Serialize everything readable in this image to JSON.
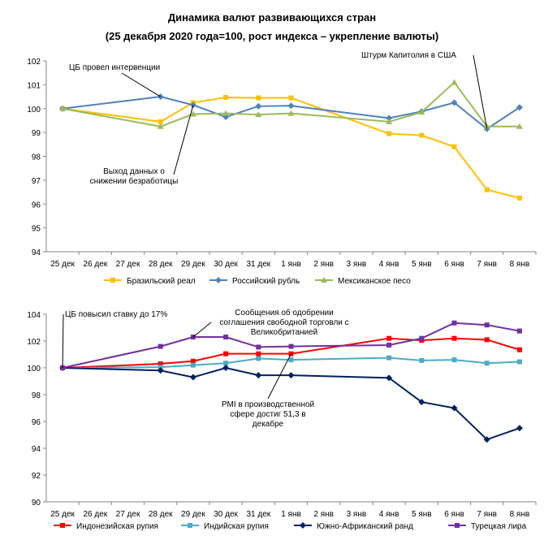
{
  "title": {
    "line1": "Динамика валют развивающихся стран",
    "line2": "(25 декабря 2020 года=100, рост индекса – укрепление валюты)"
  },
  "chart_data": [
    {
      "type": "line",
      "title": "Динамика валют развивающихся стран (25 декабря 2020 года=100, рост индекса – укрепление валюты)",
      "categories": [
        "25 дек",
        "26 дек",
        "27 дек",
        "28 дек",
        "29 дек",
        "30 дек",
        "31 дек",
        "1 янв",
        "2 янв",
        "3 янв",
        "4 янв",
        "5 янв",
        "6 янв",
        "7 янв",
        "8 янв"
      ],
      "ylim": [
        94,
        102
      ],
      "yticks": [
        94,
        95,
        96,
        97,
        98,
        99,
        100,
        101,
        102
      ],
      "legend": "bottom",
      "series": [
        {
          "name": "Бразильский реал",
          "color": "#FFC000",
          "marker": "square",
          "values": [
            100,
            null,
            null,
            99.45,
            100.25,
            100.47,
            100.45,
            100.45,
            null,
            null,
            98.95,
            98.88,
            98.4,
            96.6,
            96.25
          ]
        },
        {
          "name": "Российский рубль",
          "color": "#4F81BD",
          "marker": "diamond",
          "values": [
            100,
            null,
            null,
            100.5,
            100.15,
            99.65,
            100.1,
            100.12,
            null,
            null,
            99.6,
            99.88,
            100.25,
            99.15,
            100.05
          ]
        },
        {
          "name": "Мексиканское песо",
          "color": "#9BBB59",
          "marker": "triangle",
          "values": [
            100,
            null,
            null,
            99.25,
            99.77,
            99.8,
            99.75,
            99.8,
            null,
            null,
            99.45,
            99.85,
            101.1,
            99.25,
            99.25
          ]
        }
      ],
      "annotations": [
        {
          "lines": [
            "ЦБ провел интервенции"
          ],
          "target": {
            "series": 1,
            "category": "28 дек"
          }
        },
        {
          "lines": [
            "Выход данных о",
            "снижении безработицы"
          ],
          "target": {
            "series": 1,
            "category": "29 дек"
          }
        },
        {
          "lines": [
            "Штурм Капитолия в США"
          ],
          "target": {
            "series": 1,
            "category": "7 янв"
          }
        }
      ]
    },
    {
      "type": "line",
      "categories": [
        "25 дек",
        "26 дек",
        "27 дек",
        "28 дек",
        "29 дек",
        "30 дек",
        "31 дек",
        "1 янв",
        "2 янв",
        "3 янв",
        "4 янв",
        "5 янв",
        "6 янв",
        "7 янв",
        "8 янв"
      ],
      "ylim": [
        90,
        104
      ],
      "yticks": [
        90,
        92,
        94,
        96,
        98,
        100,
        102,
        104
      ],
      "legend": "bottom",
      "series": [
        {
          "name": "Индонезийская рупия",
          "color": "#FF0000",
          "marker": "square",
          "values": [
            100,
            null,
            null,
            100.3,
            100.5,
            101.05,
            101.05,
            101.05,
            null,
            null,
            102.2,
            102.05,
            102.2,
            102.1,
            101.35
          ]
        },
        {
          "name": "Индийская рупия",
          "color": "#4BACC6",
          "marker": "square",
          "values": [
            100,
            null,
            null,
            100.05,
            100.2,
            100.35,
            100.7,
            100.6,
            null,
            null,
            100.75,
            100.55,
            100.6,
            100.35,
            100.45
          ]
        },
        {
          "name": "Южно-Африканский ранд",
          "color": "#002060",
          "marker": "diamond",
          "values": [
            100,
            null,
            null,
            99.8,
            99.3,
            100,
            99.45,
            99.45,
            null,
            null,
            99.25,
            97.45,
            97.0,
            94.65,
            95.5
          ]
        },
        {
          "name": "Турецкая лира",
          "color": "#7030A0",
          "marker": "square",
          "values": [
            100,
            null,
            null,
            101.6,
            102.3,
            102.3,
            101.55,
            101.6,
            null,
            null,
            101.7,
            102.2,
            103.35,
            103.2,
            102.75
          ]
        }
      ],
      "annotations": [
        {
          "lines": [
            "ЦБ повысил ставку до 17%"
          ],
          "target": {
            "series": 3,
            "category": "25 дек"
          }
        },
        {
          "lines": [
            "Сообщения об одобрении",
            "соглашения свободной торговли с",
            "Великобританией"
          ],
          "target": {
            "series": 3,
            "category": "29 дек"
          }
        },
        {
          "lines": [
            "PMI в производственной",
            "сфере достиг 51,3 в",
            "декабре"
          ],
          "target": {
            "series": 0,
            "category": "1 янв"
          }
        }
      ]
    }
  ]
}
